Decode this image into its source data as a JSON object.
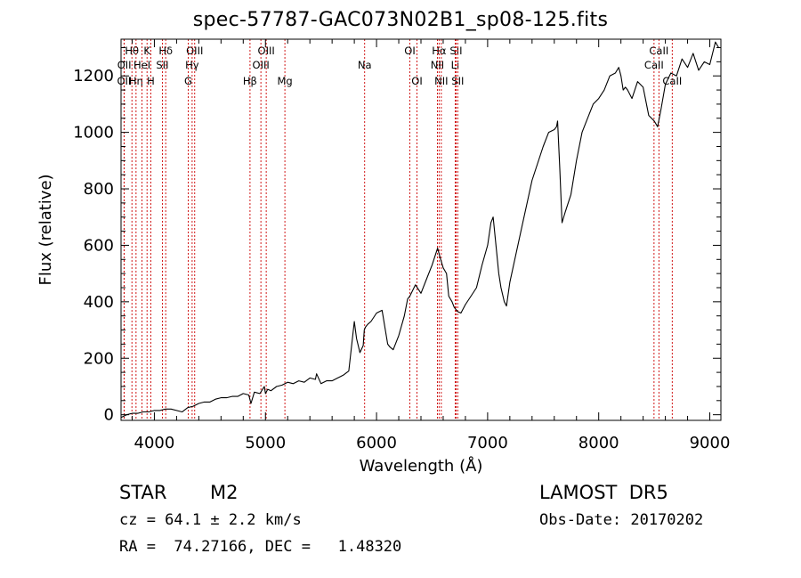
{
  "title": "spec-57787-GAC073N02B1_sp08-125.fits",
  "footer": {
    "object_class": "STAR",
    "subclass": "M2",
    "survey": "LAMOST  DR5",
    "cz": "cz = 64.1 ± 2.2 km/s",
    "obs_date": "Obs-Date: 20170202",
    "radec": "RA =  74.27166, DEC =   1.48320"
  },
  "chart_data": {
    "type": "line",
    "title": "spec-57787-GAC073N02B1_sp08-125.fits",
    "xlabel": "Wavelength (Å)",
    "ylabel": "Flux (relative)",
    "xlim": [
      3700,
      9100
    ],
    "ylim": [
      -20,
      1330
    ],
    "xticks": [
      4000,
      5000,
      6000,
      7000,
      8000,
      9000
    ],
    "yticks": [
      0,
      200,
      400,
      600,
      800,
      1000,
      1200
    ],
    "grid": false,
    "line_color": "#000000",
    "marker_color": "#cc0000",
    "series": [
      {
        "x": [
          3700,
          3750,
          3800,
          3850,
          3900,
          3950,
          4000,
          4050,
          4100,
          4150,
          4200,
          4250,
          4300,
          4350,
          4400,
          4450,
          4500,
          4550,
          4600,
          4650,
          4700,
          4750,
          4800,
          4850,
          4870,
          4900,
          4950,
          4990,
          5000,
          5020,
          5050,
          5100,
          5150,
          5200,
          5250,
          5300,
          5350,
          5400,
          5450,
          5460,
          5500,
          5550,
          5600,
          5650,
          5700,
          5750,
          5800,
          5820,
          5850,
          5880,
          5890,
          5900,
          5920,
          5950,
          6000,
          6050,
          6100,
          6120,
          6150,
          6200,
          6250,
          6280,
          6300,
          6350,
          6400,
          6450,
          6500,
          6550,
          6570,
          6600,
          6630,
          6650,
          6680,
          6700,
          6730,
          6760,
          6800,
          6850,
          6900,
          6950,
          7000,
          7030,
          7050,
          7080,
          7100,
          7120,
          7150,
          7170,
          7200,
          7300,
          7400,
          7500,
          7550,
          7600,
          7620,
          7630,
          7650,
          7670,
          7700,
          7750,
          7800,
          7850,
          7900,
          7950,
          8000,
          8050,
          8100,
          8150,
          8180,
          8200,
          8220,
          8240,
          8260,
          8300,
          8350,
          8400,
          8450,
          8500,
          8530,
          8560,
          8600,
          8650,
          8700,
          8750,
          8800,
          8850,
          8900,
          8950,
          9000,
          9050,
          9080
        ],
        "y": [
          -10,
          0,
          5,
          5,
          10,
          10,
          15,
          15,
          20,
          20,
          15,
          10,
          25,
          30,
          40,
          45,
          45,
          55,
          60,
          60,
          65,
          65,
          75,
          70,
          40,
          80,
          75,
          100,
          75,
          90,
          85,
          100,
          105,
          115,
          110,
          120,
          115,
          130,
          125,
          145,
          110,
          120,
          120,
          130,
          140,
          155,
          330,
          270,
          220,
          245,
          300,
          310,
          320,
          330,
          360,
          370,
          250,
          240,
          230,
          280,
          350,
          410,
          420,
          460,
          430,
          480,
          530,
          590,
          560,
          520,
          500,
          420,
          400,
          380,
          365,
          360,
          390,
          420,
          450,
          530,
          600,
          680,
          700,
          580,
          500,
          450,
          400,
          385,
          470,
          650,
          830,
          950,
          1000,
          1010,
          1020,
          1040,
          870,
          680,
          720,
          780,
          900,
          1000,
          1050,
          1100,
          1120,
          1150,
          1200,
          1210,
          1230,
          1200,
          1150,
          1160,
          1150,
          1120,
          1180,
          1160,
          1060,
          1040,
          1020,
          1080,
          1170,
          1210,
          1200,
          1260,
          1230,
          1280,
          1220,
          1250,
          1240,
          1320,
          1300
        ]
      }
    ],
    "line_markers": [
      {
        "label": "Hθ",
        "wavelength": 3798,
        "row": 0
      },
      {
        "label": "OII",
        "wavelength": 3727,
        "row": 2
      },
      {
        "label": "OII",
        "wavelength": 3729,
        "row": 1
      },
      {
        "label": "Hη",
        "wavelength": 3835,
        "row": 2
      },
      {
        "label": "K",
        "wavelength": 3934,
        "row": 0
      },
      {
        "label": "HeI",
        "wavelength": 3889,
        "row": 1
      },
      {
        "label": "H",
        "wavelength": 3968,
        "row": 2
      },
      {
        "label": "Hδ",
        "wavelength": 4102,
        "row": 0
      },
      {
        "label": "SII",
        "wavelength": 4072,
        "row": 1
      },
      {
        "label": "OIII",
        "wavelength": 4363,
        "row": 0
      },
      {
        "label": "Hγ",
        "wavelength": 4340,
        "row": 1
      },
      {
        "label": "G",
        "wavelength": 4305,
        "row": 2
      },
      {
        "label": "OIII",
        "wavelength": 5007,
        "row": 0
      },
      {
        "label": "OIII",
        "wavelength": 4959,
        "row": 1
      },
      {
        "label": "Hβ",
        "wavelength": 4861,
        "row": 2
      },
      {
        "label": "Mg",
        "wavelength": 5175,
        "row": 2
      },
      {
        "label": "Na",
        "wavelength": 5893,
        "row": 1
      },
      {
        "label": "OI",
        "wavelength": 6300,
        "row": 0
      },
      {
        "label": "OI",
        "wavelength": 6364,
        "row": 2
      },
      {
        "label": "Hα",
        "wavelength": 6563,
        "row": 0
      },
      {
        "label": "NII",
        "wavelength": 6548,
        "row": 1
      },
      {
        "label": "NII",
        "wavelength": 6583,
        "row": 2
      },
      {
        "label": "SII",
        "wavelength": 6716,
        "row": 0
      },
      {
        "label": "Li",
        "wavelength": 6708,
        "row": 1
      },
      {
        "label": "SII",
        "wavelength": 6731,
        "row": 2
      },
      {
        "label": "CaII",
        "wavelength": 8542,
        "row": 0
      },
      {
        "label": "CaII",
        "wavelength": 8498,
        "row": 1
      },
      {
        "label": "CaII",
        "wavelength": 8662,
        "row": 2
      }
    ]
  }
}
